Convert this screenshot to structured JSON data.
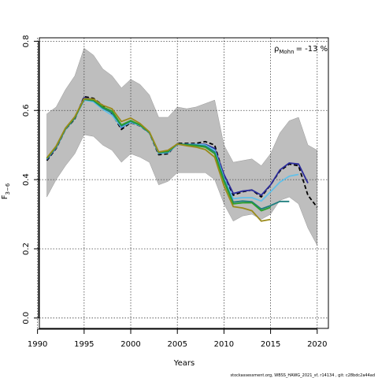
{
  "chart_data": {
    "type": "line",
    "xlabel": "Years",
    "ylabel": "F",
    "ylabel_sub": "3−6",
    "xlim": [
      1990.2,
      2021.2
    ],
    "ylim": [
      -0.03,
      0.81
    ],
    "xticks": [
      1990,
      1995,
      2000,
      2005,
      2010,
      2015,
      2020
    ],
    "yticks": [
      0.0,
      0.2,
      0.4,
      0.6,
      0.8
    ],
    "ytick_labels": [
      "0.0",
      "0.2",
      "0.4",
      "0.6",
      "0.8"
    ],
    "grid": true,
    "annotation": {
      "rho": "ρ",
      "rho_sub": "Mohn",
      "value": "= -13 %"
    },
    "band": {
      "x": [
        1991,
        1992,
        1993,
        1994,
        1995,
        1996,
        1997,
        1998,
        1999,
        2000,
        2001,
        2002,
        2003,
        2004,
        2005,
        2006,
        2007,
        2008,
        2009,
        2010,
        2011,
        2012,
        2013,
        2014,
        2015,
        2016,
        2017,
        2018,
        2019,
        2020
      ],
      "upper": [
        0.59,
        0.61,
        0.66,
        0.7,
        0.78,
        0.76,
        0.72,
        0.7,
        0.665,
        0.69,
        0.675,
        0.645,
        0.58,
        0.58,
        0.61,
        0.605,
        0.61,
        0.62,
        0.63,
        0.5,
        0.45,
        0.455,
        0.46,
        0.44,
        0.475,
        0.535,
        0.57,
        0.58,
        0.5,
        0.485
      ],
      "lower": [
        0.35,
        0.4,
        0.44,
        0.475,
        0.53,
        0.525,
        0.5,
        0.485,
        0.45,
        0.475,
        0.465,
        0.45,
        0.385,
        0.395,
        0.42,
        0.42,
        0.42,
        0.42,
        0.4,
        0.33,
        0.28,
        0.295,
        0.3,
        0.285,
        0.3,
        0.34,
        0.35,
        0.33,
        0.26,
        0.21
      ]
    },
    "series": [
      {
        "color": "#000000",
        "dash": true,
        "x": [
          1991,
          1992,
          1993,
          1994,
          1995,
          1996,
          1997,
          1998,
          1999,
          2000,
          2001,
          2002,
          2003,
          2004,
          2005,
          2006,
          2007,
          2008,
          2009,
          2010,
          2011,
          2012,
          2013,
          2014,
          2015,
          2016,
          2017,
          2018,
          2019,
          2020
        ],
        "values": [
          0.455,
          0.49,
          0.545,
          0.575,
          0.64,
          0.635,
          0.615,
          0.59,
          0.545,
          0.565,
          0.555,
          0.535,
          0.472,
          0.475,
          0.505,
          0.505,
          0.505,
          0.51,
          0.5,
          0.41,
          0.355,
          0.365,
          0.37,
          0.35,
          0.385,
          0.425,
          0.445,
          0.44,
          0.355,
          0.32
        ]
      },
      {
        "color": "#2b2b9a",
        "dash": false,
        "x": [
          1991,
          1992,
          1993,
          1994,
          1995,
          1996,
          1997,
          1998,
          1999,
          2000,
          2001,
          2002,
          2003,
          2004,
          2005,
          2006,
          2007,
          2008,
          2009,
          2010,
          2011,
          2012,
          2013,
          2014,
          2015,
          2016,
          2017,
          2018,
          2019
        ],
        "values": [
          0.458,
          0.492,
          0.546,
          0.578,
          0.637,
          0.632,
          0.61,
          0.592,
          0.55,
          0.567,
          0.556,
          0.536,
          0.476,
          0.478,
          0.502,
          0.502,
          0.502,
          0.502,
          0.49,
          0.415,
          0.36,
          0.367,
          0.37,
          0.355,
          0.385,
          0.428,
          0.448,
          0.445,
          0.39
        ]
      },
      {
        "color": "#62c0e8",
        "dash": false,
        "x": [
          1991,
          1992,
          1993,
          1994,
          1995,
          1996,
          1997,
          1998,
          1999,
          2000,
          2001,
          2002,
          2003,
          2004,
          2005,
          2006,
          2007,
          2008,
          2009,
          2010,
          2011,
          2012,
          2013,
          2014,
          2015,
          2016,
          2017,
          2018
        ],
        "values": [
          0.46,
          0.493,
          0.545,
          0.578,
          0.63,
          0.625,
          0.603,
          0.586,
          0.552,
          0.566,
          0.556,
          0.535,
          0.476,
          0.478,
          0.502,
          0.502,
          0.502,
          0.5,
          0.485,
          0.405,
          0.345,
          0.348,
          0.348,
          0.338,
          0.365,
          0.393,
          0.41,
          0.415
        ]
      },
      {
        "color": "#1d7d7d",
        "dash": false,
        "x": [
          1991,
          1992,
          1993,
          1994,
          1995,
          1996,
          1997,
          1998,
          1999,
          2000,
          2001,
          2002,
          2003,
          2004,
          2005,
          2006,
          2007,
          2008,
          2009,
          2010,
          2011,
          2012,
          2013,
          2014,
          2015,
          2016,
          2017
        ],
        "values": [
          0.461,
          0.494,
          0.546,
          0.578,
          0.632,
          0.628,
          0.607,
          0.593,
          0.555,
          0.569,
          0.557,
          0.536,
          0.478,
          0.48,
          0.503,
          0.501,
          0.5,
          0.497,
          0.48,
          0.4,
          0.335,
          0.338,
          0.336,
          0.315,
          0.325,
          0.337,
          0.337
        ]
      },
      {
        "color": "#2aa02a",
        "dash": false,
        "x": [
          1991,
          1992,
          1993,
          1994,
          1995,
          1996,
          1997,
          1998,
          1999,
          2000,
          2001,
          2002,
          2003,
          2004,
          2005,
          2006,
          2007,
          2008,
          2009,
          2010,
          2011,
          2012,
          2013,
          2014,
          2015
        ],
        "values": [
          0.462,
          0.496,
          0.548,
          0.58,
          0.633,
          0.63,
          0.61,
          0.598,
          0.558,
          0.571,
          0.558,
          0.537,
          0.479,
          0.482,
          0.503,
          0.5,
          0.498,
          0.494,
          0.475,
          0.395,
          0.33,
          0.333,
          0.333,
          0.31,
          0.32
        ]
      },
      {
        "color": "#9a8a1a",
        "dash": false,
        "x": [
          1991,
          1992,
          1993,
          1994,
          1995,
          1996,
          1997,
          1998,
          1999,
          2000,
          2001,
          2002,
          2003,
          2004,
          2005,
          2006,
          2007,
          2008,
          2009,
          2010,
          2011,
          2012,
          2013,
          2014,
          2015
        ],
        "values": [
          0.463,
          0.497,
          0.549,
          0.582,
          0.634,
          0.633,
          0.615,
          0.605,
          0.568,
          0.578,
          0.562,
          0.538,
          0.48,
          0.485,
          0.503,
          0.498,
          0.494,
          0.487,
          0.465,
          0.382,
          0.322,
          0.318,
          0.31,
          0.28,
          0.285
        ]
      }
    ]
  },
  "footer": "stockassessment.org, WBSS_HAWG_2021_sf, r14134 , git: c28bdc2a44ad"
}
